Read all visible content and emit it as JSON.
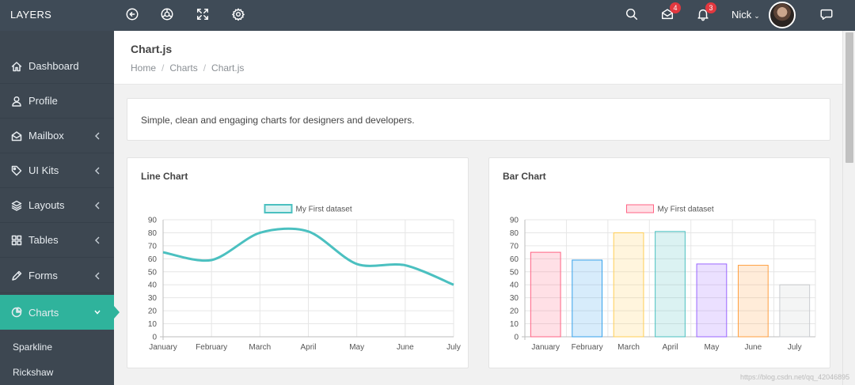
{
  "brand": "LAYERS",
  "topbar": {
    "icons": [
      "back-circle-icon",
      "globe-icon",
      "fullscreen-icon",
      "settings-icon",
      "search-icon",
      "mail-icon",
      "bell-icon",
      "chat-icon"
    ],
    "mail_count": "4",
    "notification_count": "3",
    "user_name": "Nick"
  },
  "sidebar": {
    "items": [
      {
        "label": "Dashboard",
        "icon": "home-icon"
      },
      {
        "label": "Profile",
        "icon": "user-icon"
      },
      {
        "label": "Mailbox",
        "icon": "envelope-open-icon"
      },
      {
        "label": "UI Kits",
        "icon": "tag-icon"
      },
      {
        "label": "Layouts",
        "icon": "layers-icon"
      },
      {
        "label": "Tables",
        "icon": "grid-icon"
      },
      {
        "label": "Forms",
        "icon": "pencil-icon"
      },
      {
        "label": "Charts",
        "icon": "pie-chart-icon"
      }
    ],
    "sub_items": [
      "Sparkline",
      "Rickshaw"
    ]
  },
  "page": {
    "title": "Chart.js",
    "breadcrumbs": [
      "Home",
      "Charts",
      "Chart.js"
    ],
    "description": "Simple, clean and engaging charts for designers and developers."
  },
  "colors": {
    "topbar": "#3f4b57",
    "sidebar": "#3d4751",
    "accent": "#2fb39c",
    "line": "#4bc0c0",
    "badge": "#e2383f"
  },
  "watermark": "https://blog.csdn.net/qq_42046895",
  "chart_data": [
    {
      "type": "line",
      "title": "Line Chart",
      "categories": [
        "January",
        "February",
        "March",
        "April",
        "May",
        "June",
        "July"
      ],
      "series": [
        {
          "name": "My First dataset",
          "values": [
            65,
            59,
            80,
            81,
            56,
            55,
            40
          ]
        }
      ],
      "ylim": [
        0,
        90
      ],
      "yticks": [
        "90",
        "80",
        "70",
        "60",
        "50",
        "40",
        "30",
        "20",
        "10",
        "0"
      ],
      "grid": true,
      "legend": "top-center",
      "color": "#4bc0c0"
    },
    {
      "type": "bar",
      "title": "Bar Chart",
      "categories": [
        "January",
        "February",
        "March",
        "April",
        "May",
        "June",
        "July"
      ],
      "series": [
        {
          "name": "My First dataset",
          "values": [
            65,
            59,
            80,
            81,
            56,
            55,
            40
          ]
        }
      ],
      "ylim": [
        0,
        90
      ],
      "yticks": [
        "90",
        "80",
        "70",
        "60",
        "50",
        "40",
        "30",
        "20",
        "10",
        "0"
      ],
      "grid": true,
      "legend": "top-center",
      "bar_colors": [
        "#ff6384",
        "#36a2eb",
        "#ffce56",
        "#4bc0c0",
        "#9966ff",
        "#ff9f40",
        "#c9cbcf"
      ]
    }
  ]
}
